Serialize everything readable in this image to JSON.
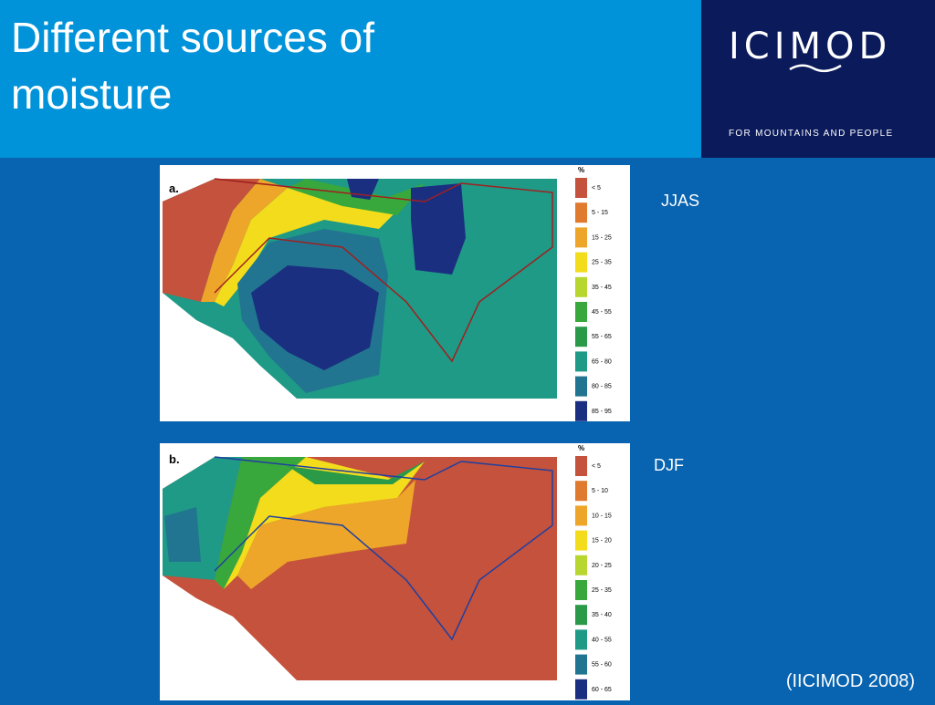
{
  "header": {
    "title_lines": [
      "Different sources of",
      "moisture"
    ]
  },
  "logo": {
    "name": "ICIMOD",
    "tagline": "FOR MOUNTAINS AND PEOPLE"
  },
  "panels": [
    {
      "letter": "a.",
      "season": "JJAS",
      "legend_title": "%",
      "legend": [
        {
          "label": "< 5",
          "color": "#c4523c"
        },
        {
          "label": "5 - 15",
          "color": "#e07a2e"
        },
        {
          "label": "15 - 25",
          "color": "#eda62a"
        },
        {
          "label": "25 - 35",
          "color": "#f2dc1c"
        },
        {
          "label": "35 - 45",
          "color": "#b8d630"
        },
        {
          "label": "45 - 55",
          "color": "#39a83c"
        },
        {
          "label": "55 - 65",
          "color": "#2a9a48"
        },
        {
          "label": "65 - 80",
          "color": "#1e9a86"
        },
        {
          "label": "80 - 85",
          "color": "#217590"
        },
        {
          "label": "85 - 95",
          "color": "#1b2f80"
        }
      ]
    },
    {
      "letter": "b.",
      "season": "DJF",
      "legend_title": "%",
      "legend": [
        {
          "label": "< 5",
          "color": "#c4523c"
        },
        {
          "label": "5 - 10",
          "color": "#e07a2e"
        },
        {
          "label": "10 - 15",
          "color": "#eda62a"
        },
        {
          "label": "15 - 20",
          "color": "#f2dc1c"
        },
        {
          "label": "20 - 25",
          "color": "#b8d630"
        },
        {
          "label": "25 - 35",
          "color": "#39a83c"
        },
        {
          "label": "35 - 40",
          "color": "#2a9a48"
        },
        {
          "label": "40 - 55",
          "color": "#1e9a86"
        },
        {
          "label": "55 - 60",
          "color": "#217590"
        },
        {
          "label": "60 - 65",
          "color": "#1b2f80"
        }
      ]
    }
  ],
  "citation": "(IICIMOD 2008)"
}
